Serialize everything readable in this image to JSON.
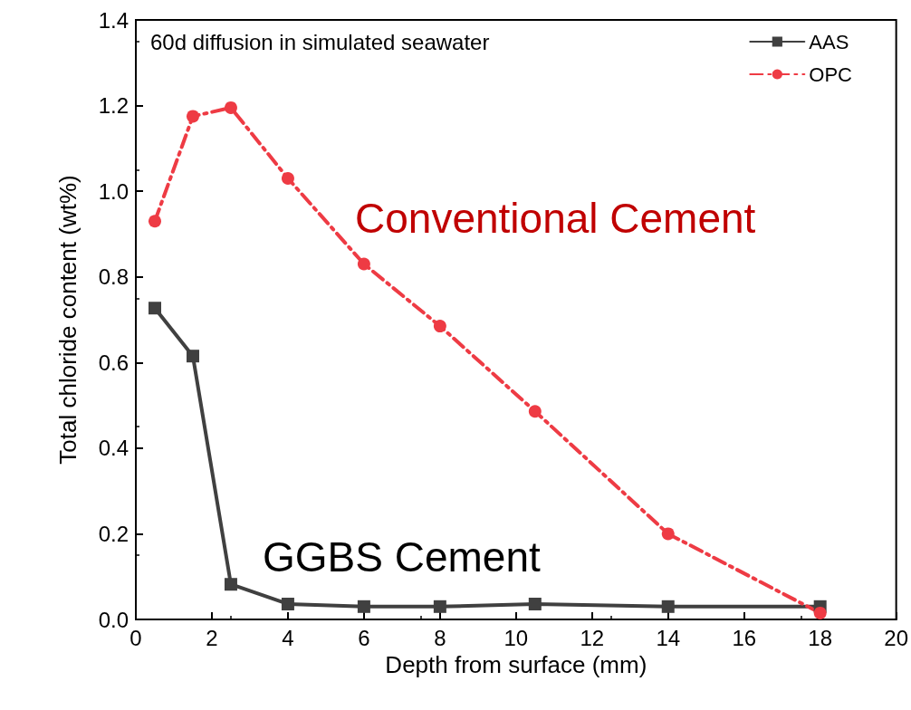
{
  "chart_data": {
    "type": "line",
    "xlabel": "Depth from surface (mm)",
    "ylabel": "Total chloride content (wt%)",
    "xlim": [
      0,
      20
    ],
    "xticks": [
      0,
      2,
      4,
      6,
      8,
      10,
      12,
      14,
      16,
      18,
      20
    ],
    "ylim": [
      0,
      1.4
    ],
    "yticks": [
      {
        "value": 0,
        "label": "0.0"
      },
      {
        "value": 0.2,
        "label": "0.2"
      },
      {
        "value": 0.4,
        "label": "0.4"
      },
      {
        "value": 0.6,
        "label": "0.6"
      },
      {
        "value": 0.8,
        "label": "0.8"
      },
      {
        "value": 1.0,
        "label": "1.0"
      },
      {
        "value": 1.2,
        "label": "1.2"
      },
      {
        "value": 1.4,
        "label": "1.4"
      }
    ],
    "grid": false,
    "legend": "top right",
    "x": [
      0.5,
      1.5,
      2.5,
      4,
      6,
      8,
      10.5,
      14,
      18
    ],
    "series": [
      {
        "name": "AAS",
        "color": "#404040",
        "marker": "square",
        "line_style": "solid",
        "values": [
          0.727,
          0.615,
          0.082,
          0.036,
          0.03,
          0.03,
          0.036,
          0.03,
          0.03
        ]
      },
      {
        "name": "OPC",
        "color": "#ee3b44",
        "marker": "circle",
        "line_style": "dashed",
        "values": [
          0.93,
          1.175,
          1.195,
          1.03,
          0.83,
          0.685,
          0.486,
          0.2,
          0.015
        ]
      }
    ],
    "annotations": [
      "60d diffusion in simulated seawater",
      "Conventional Cement",
      "GGBS Cement"
    ]
  }
}
